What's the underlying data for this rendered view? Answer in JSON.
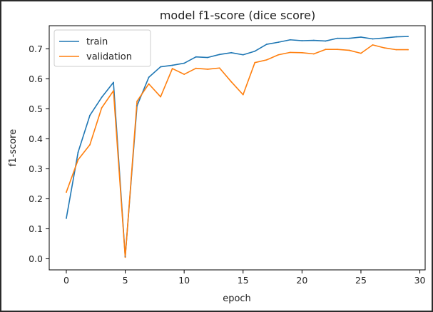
{
  "chart_data": {
    "type": "line",
    "title": "model f1-score (dice score)",
    "xlabel": "epoch",
    "ylabel": "f1-score",
    "xlim": [
      -1.45,
      30.45
    ],
    "ylim": [
      -0.037,
      0.777
    ],
    "xticks": [
      0,
      5,
      10,
      15,
      20,
      25,
      30
    ],
    "yticks": [
      0.0,
      0.1,
      0.2,
      0.3,
      0.4,
      0.5,
      0.6,
      0.7
    ],
    "grid": false,
    "legend_position": "top-left",
    "x": [
      0,
      1,
      2,
      3,
      4,
      5,
      6,
      7,
      8,
      9,
      10,
      11,
      12,
      13,
      14,
      15,
      16,
      17,
      18,
      19,
      20,
      21,
      22,
      23,
      24,
      25,
      26,
      27,
      28,
      29
    ],
    "series": [
      {
        "name": "train",
        "color": "#1f77b4",
        "values": [
          0.135,
          0.355,
          0.478,
          0.538,
          0.588,
          0.007,
          0.51,
          0.605,
          0.64,
          0.645,
          0.652,
          0.673,
          0.671,
          0.681,
          0.687,
          0.68,
          0.692,
          0.715,
          0.722,
          0.73,
          0.727,
          0.728,
          0.726,
          0.735,
          0.735,
          0.739,
          0.733,
          0.736,
          0.74,
          0.741
        ]
      },
      {
        "name": "validation",
        "color": "#ff7f0e",
        "values": [
          0.222,
          0.33,
          0.38,
          0.503,
          0.56,
          0.005,
          0.525,
          0.583,
          0.54,
          0.634,
          0.615,
          0.635,
          0.632,
          0.636,
          0.59,
          0.547,
          0.654,
          0.663,
          0.68,
          0.688,
          0.687,
          0.683,
          0.698,
          0.698,
          0.695,
          0.685,
          0.713,
          0.703,
          0.697,
          0.697
        ]
      }
    ]
  }
}
